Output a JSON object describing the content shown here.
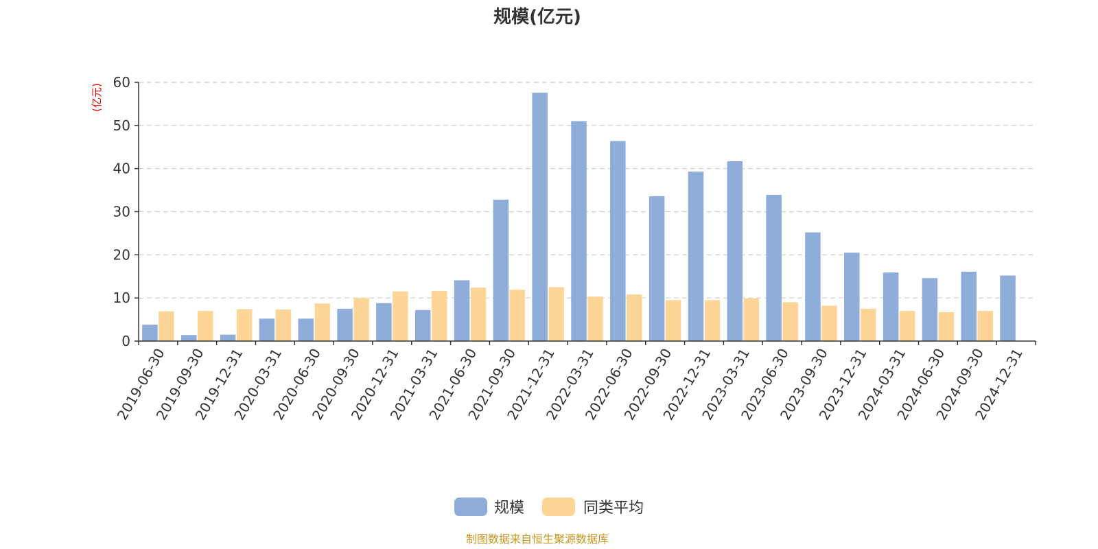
{
  "colors": {
    "series_0": "#8eadd8",
    "series_1": "#fdd697",
    "unit_label": "#e60000",
    "source": "#c8961e",
    "grid": "#cccccc",
    "axis": "#333333"
  },
  "footer": {
    "source": "制图数据来自恒生聚源数据库"
  },
  "chart_data": {
    "type": "bar",
    "title": "规模(亿元)",
    "ylabel": "(亿元)",
    "xlabel": "",
    "ylim": [
      0,
      60
    ],
    "yticks": [
      0,
      10,
      20,
      30,
      40,
      50,
      60
    ],
    "grid": true,
    "legend_position": "bottom",
    "categories": [
      "2019-06-30",
      "2019-09-30",
      "2019-12-31",
      "2020-03-31",
      "2020-06-30",
      "2020-09-30",
      "2020-12-31",
      "2021-03-31",
      "2021-06-30",
      "2021-09-30",
      "2021-12-31",
      "2022-03-31",
      "2022-06-30",
      "2022-09-30",
      "2022-12-31",
      "2023-03-31",
      "2023-06-30",
      "2023-09-30",
      "2023-12-31",
      "2024-03-31",
      "2024-06-30",
      "2024-09-30",
      "2024-12-31"
    ],
    "series": [
      {
        "name": "规模",
        "values": [
          3.8,
          1.4,
          1.5,
          5.2,
          5.2,
          7.5,
          8.8,
          7.2,
          14.1,
          32.8,
          57.6,
          51.0,
          46.4,
          33.6,
          39.3,
          41.7,
          33.9,
          25.2,
          20.5,
          15.9,
          14.6,
          16.1,
          15.2
        ]
      },
      {
        "name": "同类平均",
        "values": [
          6.9,
          7.0,
          7.4,
          7.3,
          8.7,
          10.0,
          11.5,
          11.6,
          12.4,
          11.9,
          12.5,
          10.3,
          10.8,
          9.5,
          9.5,
          9.9,
          9.0,
          8.2,
          7.5,
          7.0,
          6.7,
          7.0,
          null
        ]
      }
    ]
  }
}
